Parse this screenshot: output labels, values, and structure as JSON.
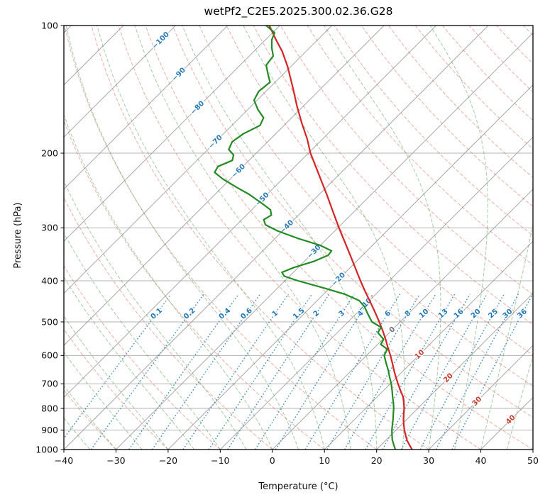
{
  "chart_data": {
    "type": "line",
    "subtype": "skew_t_log_p_sounding",
    "title": "wetPf2_C2E5.2025.300.02.36.G28",
    "xlabel": "Temperature (°C)",
    "ylabel": "Pressure (hPa)",
    "xlim": [
      -40,
      50
    ],
    "pressure_lim": [
      100,
      1000
    ],
    "skew": 1.0,
    "grid_color": "#b3b3b3",
    "x_ticks": [
      {
        "v": -40,
        "label": "−40"
      },
      {
        "v": -30,
        "label": "−30"
      },
      {
        "v": -20,
        "label": "−20"
      },
      {
        "v": -10,
        "label": "−10"
      },
      {
        "v": 0,
        "label": "0"
      },
      {
        "v": 10,
        "label": "10"
      },
      {
        "v": 20,
        "label": "20"
      },
      {
        "v": 30,
        "label": "30"
      },
      {
        "v": 40,
        "label": "40"
      },
      {
        "v": 50,
        "label": "50"
      }
    ],
    "p_ticks": [
      {
        "v": 100,
        "label": "100"
      },
      {
        "v": 200,
        "label": "200"
      },
      {
        "v": 300,
        "label": "300"
      },
      {
        "v": 400,
        "label": "400"
      },
      {
        "v": 500,
        "label": "500"
      },
      {
        "v": 600,
        "label": "600"
      },
      {
        "v": 700,
        "label": "700"
      },
      {
        "v": 800,
        "label": "800"
      },
      {
        "v": 900,
        "label": "900"
      },
      {
        "v": 1000,
        "label": "1000"
      }
    ],
    "isotherms": {
      "min": -120,
      "max": 50,
      "step": 10,
      "color": "#989898",
      "labels": [
        {
          "t": -100,
          "label": "−100",
          "y": 57,
          "color": "#2d7bb2"
        },
        {
          "t": -90,
          "label": "−90",
          "y": 105,
          "color": "#2d7bb2"
        },
        {
          "t": -80,
          "label": "−80",
          "y": 152,
          "color": "#2d7bb2"
        },
        {
          "t": -70,
          "label": "−70",
          "y": 200,
          "color": "#2d7bb2"
        },
        {
          "t": -60,
          "label": "−60",
          "y": 241,
          "color": "#2d7bb2"
        },
        {
          "t": -50,
          "label": "−50",
          "y": 281,
          "color": "#2d7bb2"
        },
        {
          "t": -40,
          "label": "−40",
          "y": 320,
          "color": "#2d7bb2"
        },
        {
          "t": -30,
          "label": "−30",
          "y": 355,
          "color": "#2d7bb2"
        },
        {
          "t": -20,
          "label": "−20",
          "y": 394,
          "color": "#2d7bb2"
        },
        {
          "t": -10,
          "label": "−10",
          "y": 430,
          "color": "#2d7bb2"
        },
        {
          "t": 0,
          "label": "0",
          "y": 465,
          "color": "#6f6f6f"
        },
        {
          "t": 10,
          "label": "10",
          "y": 500,
          "color": "#c43d2f"
        },
        {
          "t": 20,
          "label": "20",
          "y": 533,
          "color": "#c43d2f"
        },
        {
          "t": 30,
          "label": "30",
          "y": 566,
          "color": "#c43d2f"
        },
        {
          "t": 40,
          "label": "40",
          "y": 592,
          "color": "#c43d2f"
        }
      ]
    },
    "dry_adiabats": {
      "min": -40,
      "max": 200,
      "step": 10,
      "color": "#d95f4c"
    },
    "moist_adiabats": {
      "min": -40,
      "max": 45,
      "step": 5,
      "color": "#4c9a4c"
    },
    "mixing_ratio": {
      "color": "#2077b4",
      "label_pressure": 478,
      "top_pressure": 430,
      "values": [
        0.1,
        0.2,
        0.4,
        0.6,
        1,
        1.5,
        2,
        3,
        4,
        6,
        8,
        10,
        13,
        16,
        20,
        25,
        30,
        36
      ],
      "labels": [
        "0.1",
        "0.2",
        "0.4",
        "0.6",
        "1",
        "1.5",
        "2",
        "3",
        "4",
        "6",
        "8",
        "10",
        "13",
        "16",
        "20",
        "25",
        "30",
        "36"
      ]
    },
    "series": [
      {
        "name": "temperature",
        "color": "#d62424",
        "width": 2.2,
        "points": [
          [
            1000,
            26.8
          ],
          [
            975,
            25.4
          ],
          [
            950,
            24.0
          ],
          [
            925,
            22.8
          ],
          [
            900,
            21.6
          ],
          [
            875,
            20.5
          ],
          [
            850,
            19.4
          ],
          [
            825,
            18.4
          ],
          [
            800,
            17.4
          ],
          [
            775,
            16.2
          ],
          [
            750,
            14.9
          ],
          [
            725,
            13.2
          ],
          [
            700,
            11.5
          ],
          [
            675,
            9.8
          ],
          [
            650,
            8.1
          ],
          [
            625,
            6.4
          ],
          [
            600,
            4.6
          ],
          [
            575,
            2.6
          ],
          [
            550,
            0.6
          ],
          [
            525,
            -1.6
          ],
          [
            500,
            -4.0
          ],
          [
            475,
            -6.6
          ],
          [
            450,
            -9.4
          ],
          [
            425,
            -12.4
          ],
          [
            400,
            -15.5
          ],
          [
            375,
            -18.7
          ],
          [
            350,
            -22.1
          ],
          [
            325,
            -25.8
          ],
          [
            300,
            -29.8
          ],
          [
            275,
            -34.0
          ],
          [
            250,
            -38.6
          ],
          [
            225,
            -43.8
          ],
          [
            200,
            -49.6
          ],
          [
            185,
            -53.0
          ],
          [
            170,
            -57.0
          ],
          [
            155,
            -61.2
          ],
          [
            140,
            -65.6
          ],
          [
            125,
            -70.6
          ],
          [
            115,
            -74.6
          ],
          [
            108,
            -78.0
          ],
          [
            100,
            -82.0
          ]
        ]
      },
      {
        "name": "dewpoint",
        "color": "#228b22",
        "width": 2.2,
        "points": [
          [
            1000,
            23.6
          ],
          [
            975,
            22.4
          ],
          [
            950,
            21.2
          ],
          [
            925,
            20.2
          ],
          [
            900,
            19.2
          ],
          [
            875,
            18.3
          ],
          [
            850,
            17.4
          ],
          [
            825,
            16.4
          ],
          [
            800,
            15.4
          ],
          [
            775,
            14.2
          ],
          [
            750,
            12.9
          ],
          [
            725,
            11.6
          ],
          [
            700,
            10.2
          ],
          [
            675,
            8.6
          ],
          [
            650,
            7.0
          ],
          [
            625,
            5.2
          ],
          [
            600,
            3.4
          ],
          [
            580,
            2.8
          ],
          [
            565,
            0.6
          ],
          [
            550,
            0.2
          ],
          [
            530,
            -2.2
          ],
          [
            515,
            -2.6
          ],
          [
            500,
            -5.4
          ],
          [
            480,
            -7.6
          ],
          [
            460,
            -9.8
          ],
          [
            445,
            -12.0
          ],
          [
            430,
            -16.0
          ],
          [
            415,
            -21.5
          ],
          [
            400,
            -27.5
          ],
          [
            390,
            -31.0
          ],
          [
            382,
            -32.2
          ],
          [
            372,
            -30.8
          ],
          [
            360,
            -28.2
          ],
          [
            348,
            -26.6
          ],
          [
            340,
            -26.8
          ],
          [
            330,
            -30.0
          ],
          [
            318,
            -35.5
          ],
          [
            305,
            -41.0
          ],
          [
            295,
            -44.5
          ],
          [
            287,
            -45.8
          ],
          [
            280,
            -45.2
          ],
          [
            272,
            -46.4
          ],
          [
            262,
            -49.5
          ],
          [
            250,
            -53.5
          ],
          [
            240,
            -57.5
          ],
          [
            230,
            -61.5
          ],
          [
            222,
            -64.3
          ],
          [
            215,
            -64.8
          ],
          [
            208,
            -63.2
          ],
          [
            202,
            -64.0
          ],
          [
            196,
            -66.0
          ],
          [
            188,
            -66.8
          ],
          [
            180,
            -66.2
          ],
          [
            172,
            -64.6
          ],
          [
            165,
            -65.4
          ],
          [
            158,
            -68.0
          ],
          [
            150,
            -70.6
          ],
          [
            143,
            -71.4
          ],
          [
            136,
            -71.0
          ],
          [
            130,
            -73.0
          ],
          [
            124,
            -75.0
          ],
          [
            118,
            -75.4
          ],
          [
            113,
            -77.2
          ],
          [
            108,
            -78.8
          ],
          [
            104,
            -79.6
          ],
          [
            100,
            -82.6
          ]
        ]
      }
    ]
  }
}
